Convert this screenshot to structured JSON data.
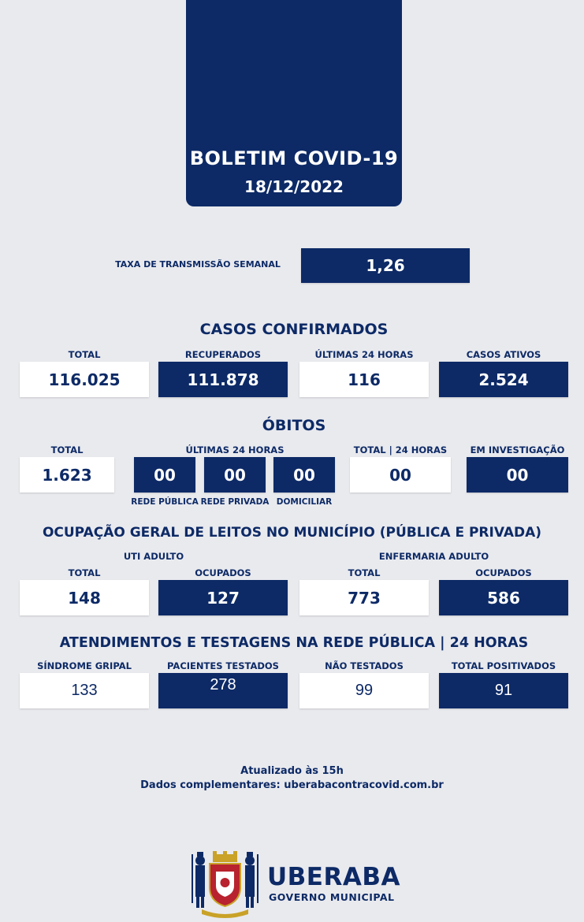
{
  "header": {
    "title": "BOLETIM COVID-19",
    "date": "18/12/2022"
  },
  "transmission": {
    "label": "TAXA DE TRANSMISSÃO SEMANAL",
    "value": "1,26"
  },
  "cases": {
    "title": "CASOS CONFIRMADOS",
    "items": [
      {
        "label": "TOTAL",
        "value": "116.025"
      },
      {
        "label": "RECUPERADOS",
        "value": "111.878"
      },
      {
        "label": "ÚLTIMAS 24 HORAS",
        "value": "116"
      },
      {
        "label": "CASOS ATIVOS",
        "value": "2.524"
      }
    ]
  },
  "deaths": {
    "title": "ÓBITOS",
    "total_label": "TOTAL",
    "total_value": "1.623",
    "last24_label": "ÚLTIMAS 24 HORAS",
    "last24": [
      {
        "sub": "REDE PÚBLICA",
        "value": "00"
      },
      {
        "sub": "REDE PRIVADA",
        "value": "00"
      },
      {
        "sub": "DOMICILIAR",
        "value": "00"
      }
    ],
    "total24_label": "TOTAL | 24 HORAS",
    "total24_value": "00",
    "investigation_label": "EM INVESTIGAÇÃO",
    "investigation_value": "00"
  },
  "beds": {
    "title": "OCUPAÇÃO GERAL DE LEITOS NO MUNICÍPIO (PÚBLICA E PRIVADA)",
    "uti": {
      "label": "UTI ADULTO",
      "total_label": "TOTAL",
      "total": "148",
      "occ_label": "OCUPADOS",
      "occupied": "127"
    },
    "ward": {
      "label": "ENFERMARIA ADULTO",
      "total_label": "TOTAL",
      "total": "773",
      "occ_label": "OCUPADOS",
      "occupied": "586"
    }
  },
  "tests": {
    "title": "ATENDIMENTOS E TESTAGENS NA REDE PÚBLICA | 24 HORAS",
    "items": [
      {
        "label": "SÍNDROME GRIPAL",
        "value": "133"
      },
      {
        "label": "PACIENTES TESTADOS",
        "value": "278"
      },
      {
        "label": "NÃO TESTADOS",
        "value": "99"
      },
      {
        "label": "TOTAL POSITIVADOS",
        "value": "91"
      }
    ]
  },
  "footer": {
    "updated": "Atualizado às 15h",
    "more": "Dados complementares: uberabacontracovid.com.br"
  },
  "logo": {
    "name": "UBERABA",
    "subtitle": "GOVERNO MUNICIPAL"
  },
  "colors": {
    "navy": "#0d2a66",
    "background": "#e9eaee",
    "white": "#ffffff"
  }
}
